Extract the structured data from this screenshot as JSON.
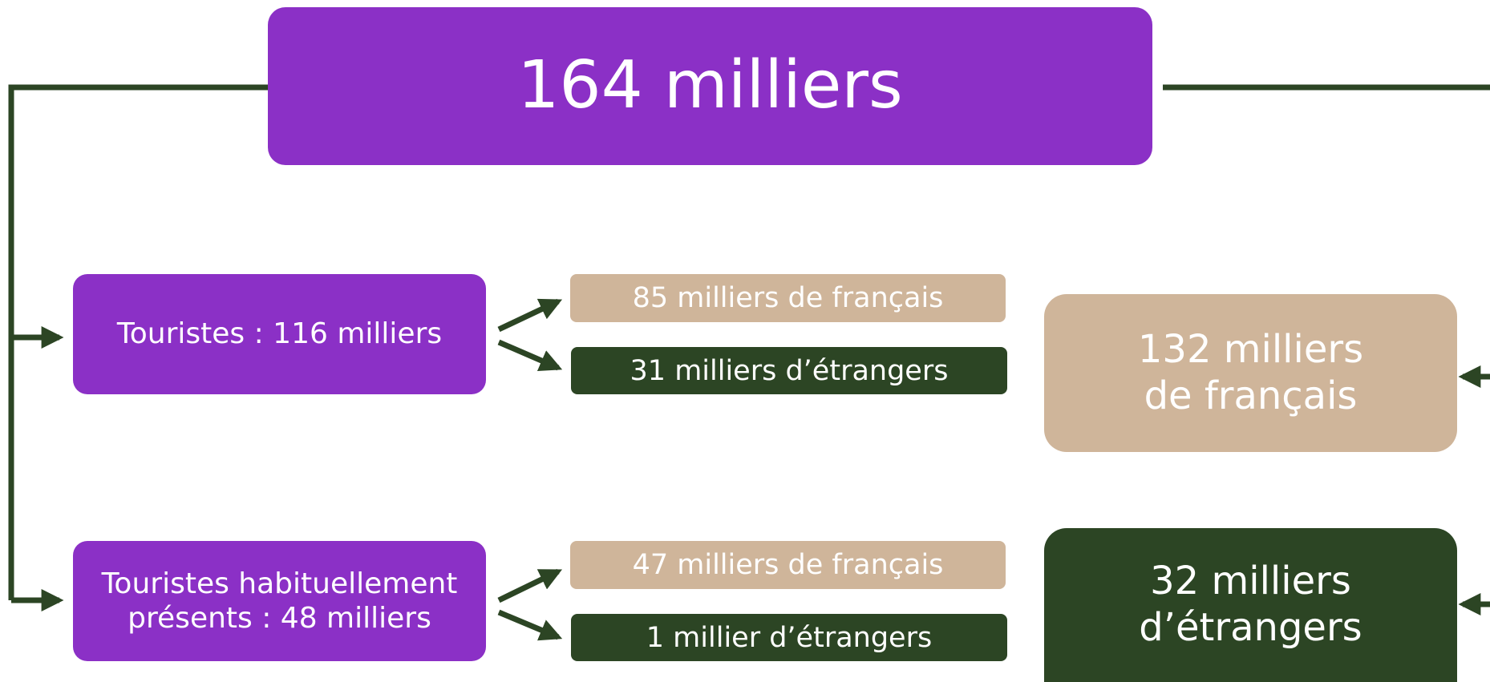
{
  "total": {
    "label": "164 milliers"
  },
  "groups": [
    {
      "label": [
        "Touristes : 116 milliers"
      ],
      "split": [
        "85 milliers de français",
        "31 milliers d’étrangers"
      ]
    },
    {
      "label": [
        "Touristes habituellement",
        "présents : 48 milliers"
      ],
      "split": [
        "47 milliers de français",
        "1 millier d’étrangers"
      ]
    }
  ],
  "totals_by_origin": [
    {
      "label": [
        "132 milliers",
        "de français"
      ]
    },
    {
      "label": [
        "32 milliers",
        "d’étrangers"
      ]
    }
  ]
}
